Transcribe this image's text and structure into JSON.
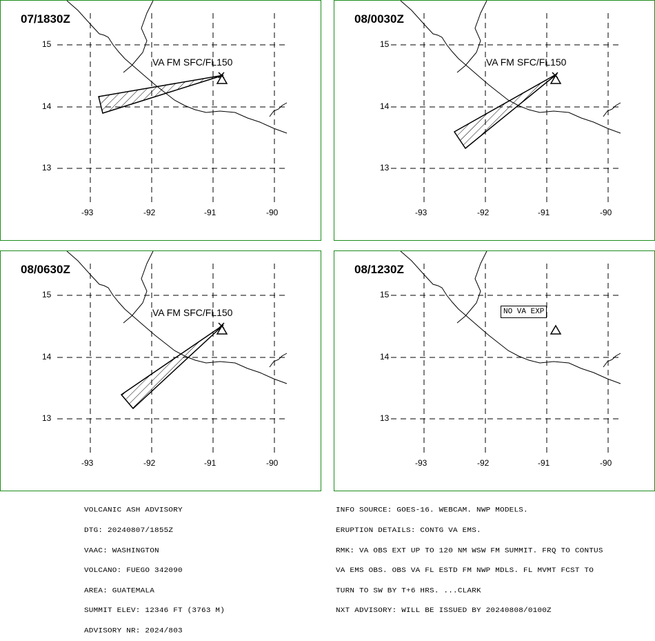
{
  "panels": [
    {
      "time": "07/1830Z",
      "va_label": "VA FM SFC/FL150",
      "has_plume": true
    },
    {
      "time": "08/0030Z",
      "va_label": "VA FM SFC/FL150",
      "has_plume": true
    },
    {
      "time": "08/0630Z",
      "va_label": "VA FM SFC/FL150",
      "has_plume": true
    },
    {
      "time": "08/1230Z",
      "va_label": "NO VA EXP",
      "has_plume": false
    }
  ],
  "axes": {
    "lat_labels": [
      "15",
      "14",
      "13"
    ],
    "lon_labels": [
      "-93",
      "-92",
      "-91",
      "-90"
    ]
  },
  "advisory_left": {
    "lines": [
      "VOLCANIC ASH ADVISORY",
      "DTG: 20240807/1855Z",
      "VAAC: WASHINGTON",
      "VOLCANO: FUEGO 342090",
      "AREA: GUATEMALA",
      "SUMMIT ELEV: 12346 FT (3763 M)",
      "ADVISORY NR: 2024/803"
    ]
  },
  "advisory_right": {
    "lines": [
      "INFO SOURCE: GOES-16. WEBCAM. NWP MODELS.",
      "ERUPTION DETAILS: CONTG VA EMS.",
      "RMK: VA OBS EXT UP TO 120 NM WSW FM SUMMIT. FRQ TO CONTUS",
      "VA EMS OBS. OBS VA FL ESTD FM NWP MDLS. FL MVMT FCST TO",
      "TURN TO SW BY T+6 HRS. ...CLARK",
      "NXT ADVISORY: WILL BE ISSUED BY 20240808/0100Z"
    ]
  },
  "colors": {
    "panel_border": "#1c8c1c",
    "lines": "#000000"
  }
}
